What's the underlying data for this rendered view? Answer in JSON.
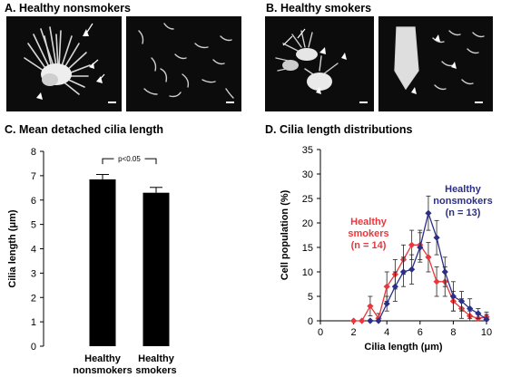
{
  "figure": {
    "panel_a": {
      "title": "A. Healthy nonsmokers"
    },
    "panel_b": {
      "title": "B. Healthy smokers"
    },
    "panel_c": {
      "title": "C. Mean detached cilia length"
    },
    "panel_d": {
      "title": "D. Cilia length distributions"
    }
  },
  "chart_data": [
    {
      "type": "bar",
      "title": "C. Mean detached cilia length",
      "ylabel": "Cilia length (μm)",
      "xlabel": "",
      "ylim": [
        0,
        8
      ],
      "yticks": [
        "0",
        "1",
        "2",
        "3",
        "4",
        "5",
        "6",
        "7",
        "8"
      ],
      "categories": [
        [
          "Healthy",
          "nonsmokers"
        ],
        [
          "Healthy",
          "smokers"
        ]
      ],
      "values": [
        6.85,
        6.3
      ],
      "errors": [
        0.2,
        0.22
      ],
      "annotation": "p<0.05",
      "bar_color": "#000000",
      "grid": false
    },
    {
      "type": "line",
      "title": "D. Cilia length distributions",
      "xlabel": "Cilia length (μm)",
      "ylabel": "Cell population (%)",
      "xlim": [
        0,
        10
      ],
      "ylim": [
        0,
        35
      ],
      "xticks": [
        "0",
        "2",
        "4",
        "6",
        "8",
        "10"
      ],
      "yticks": [
        "0",
        "5",
        "10",
        "15",
        "20",
        "25",
        "30",
        "35"
      ],
      "grid": false,
      "series": [
        {
          "label_lines": [
            "Healthy",
            "smokers",
            "(n = 14)"
          ],
          "color": "#e8383d",
          "x": [
            2.0,
            2.5,
            3.0,
            3.5,
            4.0,
            4.5,
            5.0,
            5.5,
            6.0,
            6.5,
            7.0,
            7.5,
            8.0,
            8.5,
            9.0,
            9.5,
            10.0
          ],
          "y": [
            0,
            0,
            3,
            0.5,
            7,
            9.5,
            12.5,
            15.5,
            15.5,
            13,
            8,
            8,
            4,
            2.5,
            1,
            0.5,
            0.8
          ],
          "err": [
            0,
            0,
            2,
            1,
            3,
            3,
            3,
            3,
            3,
            3,
            3,
            3,
            2,
            2,
            1,
            1,
            1
          ]
        },
        {
          "label_lines": [
            "Healthy",
            "nonsmokers",
            "(n = 13)"
          ],
          "color": "#2b2f86",
          "x": [
            3.0,
            3.5,
            4.0,
            4.5,
            5.0,
            5.5,
            6.0,
            6.5,
            7.0,
            7.5,
            8.0,
            8.5,
            9.0,
            9.5,
            10.0
          ],
          "y": [
            0,
            0,
            3.5,
            7,
            10,
            10.5,
            15,
            22,
            17,
            10,
            5,
            4,
            2.5,
            1.5,
            0.3
          ],
          "err": [
            0,
            0,
            1.5,
            3,
            3,
            3,
            3,
            3.5,
            3.5,
            3,
            3,
            2,
            2,
            1,
            1
          ]
        }
      ]
    }
  ]
}
